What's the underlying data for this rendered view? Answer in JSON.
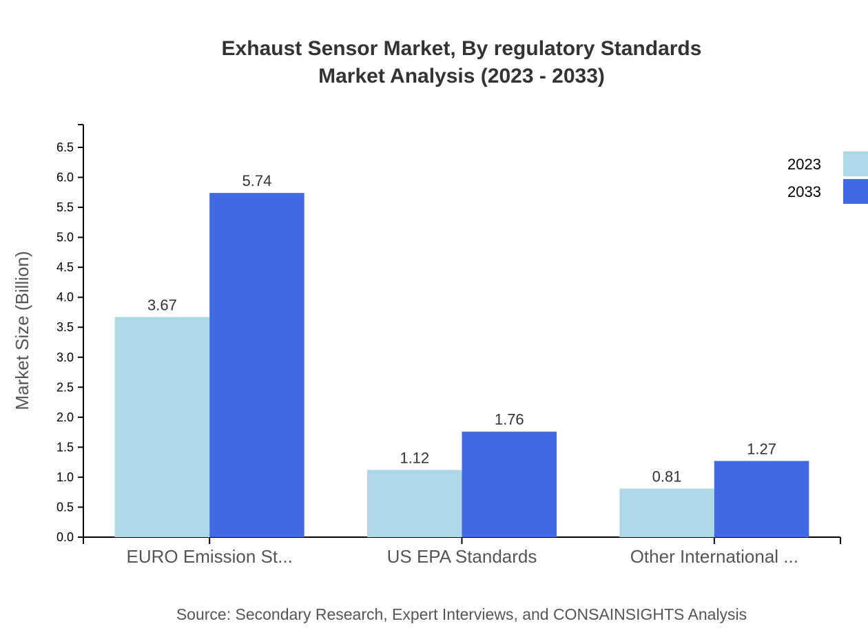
{
  "chart_data": {
    "type": "bar",
    "title": "Exhaust Sensor Market, By regulatory Standards",
    "subtitle": "Market Analysis (2023 - 2033)",
    "xlabel": "",
    "ylabel": "Market Size (Billion)",
    "ylim": [
      0,
      6.88
    ],
    "yticks": [
      "0.0",
      "0.5",
      "1.0",
      "1.5",
      "2.0",
      "2.5",
      "3.0",
      "3.5",
      "4.0",
      "4.5",
      "5.0",
      "5.5",
      "6.0",
      "6.5"
    ],
    "categories": [
      "EURO Emission St...",
      "US EPA Standards",
      "Other International ..."
    ],
    "series": [
      {
        "name": "2023",
        "color": "#add8e6",
        "values": [
          3.67,
          1.12,
          0.81
        ],
        "labels": [
          "3.67",
          "1.12",
          "0.81"
        ]
      },
      {
        "name": "2033",
        "color": "#4169e1",
        "values": [
          5.74,
          1.76,
          1.27
        ],
        "labels": [
          "5.74",
          "1.76",
          "1.27"
        ]
      }
    ],
    "grid": false,
    "legend": "top-right",
    "source": "Source: Secondary Research, Expert Interviews, and CONSAINSIGHTS Analysis"
  }
}
